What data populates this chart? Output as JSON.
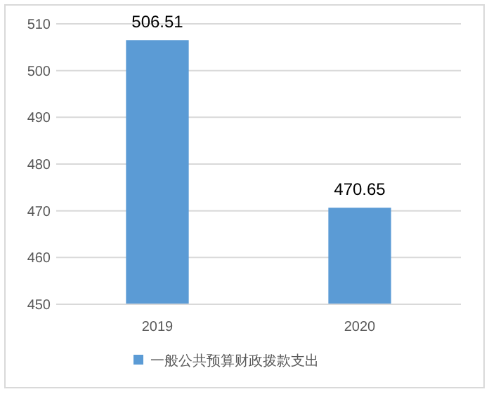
{
  "chart_data": {
    "type": "bar",
    "categories": [
      "2019",
      "2020"
    ],
    "series": [
      {
        "name": "一般公共预算财政拨款支出",
        "color": "#5b9bd5",
        "values": [
          506.51,
          470.65
        ]
      }
    ],
    "ylim": [
      450,
      510
    ],
    "yticks": [
      450,
      460,
      470,
      480,
      490,
      500,
      510
    ],
    "grid": "y",
    "legend": "bottom",
    "data_labels": true
  }
}
